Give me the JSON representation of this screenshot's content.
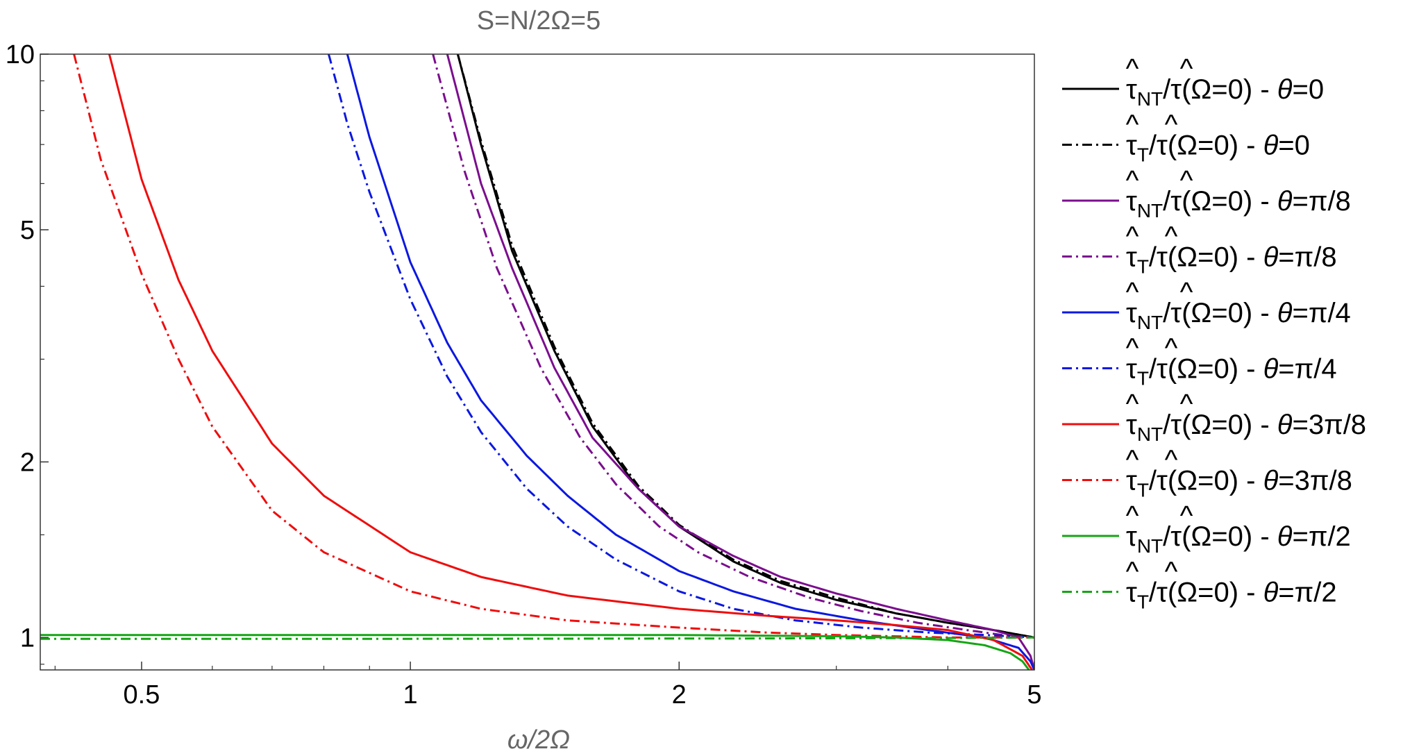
{
  "chart_data": {
    "type": "line",
    "title": "S=N/2Ω=5",
    "xlabel": "ω/2Ω",
    "ylabel": "",
    "xscale": "log",
    "yscale": "log",
    "xlim": [
      0.385,
      5.0
    ],
    "ylim": [
      0.88,
      10
    ],
    "xticks": [
      0.5,
      1,
      2,
      5
    ],
    "xtick_labels": [
      "0.5",
      "1",
      "2",
      "5"
    ],
    "yticks": [
      1,
      2,
      5,
      10
    ],
    "ytick_labels": [
      "1",
      "2",
      "5",
      "10"
    ],
    "grid": false,
    "legend_position": "right",
    "series": [
      {
        "name": "τ̂NT/τ̂(Ω=0) - θ=0",
        "sub": "NT",
        "theta": "0",
        "color": "#000000",
        "dash": "solid",
        "x": [
          1.13,
          1.2,
          1.3,
          1.45,
          1.6,
          1.8,
          2.0,
          2.3,
          2.6,
          3.0,
          3.5,
          4.0,
          4.5,
          5.0
        ],
        "y": [
          10,
          7.0,
          4.6,
          3.1,
          2.3,
          1.8,
          1.55,
          1.35,
          1.24,
          1.16,
          1.1,
          1.06,
          1.03,
          1.0
        ]
      },
      {
        "name": "τ̂T/τ̂(Ω=0) - θ=0",
        "sub": "T",
        "theta": "0",
        "color": "#000000",
        "dash": "dashdot",
        "x": [
          1.13,
          1.2,
          1.3,
          1.45,
          1.6,
          1.8,
          2.0,
          2.3,
          2.6,
          3.0,
          3.5,
          4.0,
          4.5,
          5.0
        ],
        "y": [
          10,
          7.1,
          4.7,
          3.15,
          2.33,
          1.82,
          1.56,
          1.36,
          1.25,
          1.17,
          1.1,
          1.06,
          1.03,
          1.0
        ]
      },
      {
        "name": "τ̂NT/τ̂(Ω=0) - θ=π/8",
        "sub": "NT",
        "theta": "π/8",
        "color": "#7b0d8e",
        "dash": "solid",
        "x": [
          1.1,
          1.2,
          1.3,
          1.45,
          1.6,
          1.8,
          2.0,
          2.3,
          2.6,
          3.0,
          3.5,
          4.0,
          4.5,
          4.8,
          4.95,
          5.0
        ],
        "y": [
          10,
          6.0,
          4.3,
          2.9,
          2.2,
          1.8,
          1.55,
          1.38,
          1.27,
          1.19,
          1.12,
          1.07,
          1.03,
          1.0,
          0.93,
          0.88
        ]
      },
      {
        "name": "τ̂T/τ̂(Ω=0) - θ=π/8",
        "sub": "T",
        "theta": "π/8",
        "color": "#7b0d8e",
        "dash": "dashdot",
        "x": [
          1.06,
          1.15,
          1.25,
          1.4,
          1.55,
          1.7,
          1.9,
          2.1,
          2.4,
          2.8,
          3.2,
          3.7,
          4.2,
          4.6,
          5.0
        ],
        "y": [
          10,
          6.3,
          4.3,
          2.9,
          2.2,
          1.83,
          1.55,
          1.4,
          1.27,
          1.17,
          1.11,
          1.06,
          1.03,
          1.01,
          1.0
        ]
      },
      {
        "name": "τ̂NT/τ̂(Ω=0) - θ=π/4",
        "sub": "NT",
        "theta": "π/4",
        "color": "#0b18e0",
        "dash": "solid",
        "x": [
          0.85,
          0.9,
          1.0,
          1.1,
          1.2,
          1.35,
          1.5,
          1.7,
          2.0,
          2.3,
          2.7,
          3.2,
          3.8,
          4.4,
          4.8,
          4.95,
          5.0
        ],
        "y": [
          10,
          7.2,
          4.4,
          3.2,
          2.55,
          2.05,
          1.75,
          1.5,
          1.3,
          1.2,
          1.12,
          1.07,
          1.03,
          1.0,
          0.96,
          0.91,
          0.88
        ]
      },
      {
        "name": "τ̂T/τ̂(Ω=0) - θ=π/4",
        "sub": "T",
        "theta": "π/4",
        "color": "#0b18e0",
        "dash": "dashdot",
        "x": [
          0.81,
          0.85,
          0.9,
          1.0,
          1.1,
          1.2,
          1.35,
          1.5,
          1.7,
          2.0,
          2.3,
          2.7,
          3.2,
          3.8,
          4.4,
          5.0
        ],
        "y": [
          10,
          7.6,
          5.8,
          3.8,
          2.8,
          2.25,
          1.8,
          1.55,
          1.36,
          1.2,
          1.12,
          1.07,
          1.04,
          1.02,
          1.01,
          1.0
        ]
      },
      {
        "name": "τ̂NT/τ̂(Ω=0) - θ=3π/8",
        "sub": "NT",
        "theta": "3π/8",
        "color": "#ef0d0d",
        "dash": "solid",
        "x": [
          0.46,
          0.5,
          0.55,
          0.6,
          0.7,
          0.8,
          1.0,
          1.2,
          1.5,
          2.0,
          2.5,
          3.0,
          3.5,
          4.0,
          4.5,
          4.85,
          4.97
        ],
        "y": [
          10,
          6.1,
          4.1,
          3.1,
          2.15,
          1.75,
          1.4,
          1.27,
          1.18,
          1.12,
          1.09,
          1.07,
          1.05,
          1.03,
          0.99,
          0.93,
          0.88
        ]
      },
      {
        "name": "τ̂T/τ̂(Ω=0) - θ=3π/8",
        "sub": "T",
        "theta": "3π/8",
        "color": "#ef0d0d",
        "dash": "dashdot",
        "x": [
          0.42,
          0.45,
          0.5,
          0.55,
          0.6,
          0.7,
          0.8,
          1.0,
          1.2,
          1.5,
          2.0,
          2.5,
          3.0,
          4.0,
          5.0
        ],
        "y": [
          10,
          6.6,
          4.2,
          3.0,
          2.3,
          1.65,
          1.4,
          1.2,
          1.12,
          1.07,
          1.04,
          1.02,
          1.01,
          1.0,
          1.0
        ]
      },
      {
        "name": "τ̂NT/τ̂(Ω=0) - θ=π/2",
        "sub": "NT",
        "theta": "π/2",
        "color": "#15a515",
        "dash": "solid",
        "x": [
          0.385,
          1.0,
          2.0,
          3.0,
          3.5,
          4.0,
          4.4,
          4.7,
          4.85,
          4.93
        ],
        "y": [
          1.01,
          1.01,
          1.01,
          1.005,
          1.0,
          0.99,
          0.97,
          0.94,
          0.91,
          0.88
        ]
      },
      {
        "name": "τ̂T/τ̂(Ω=0) - θ=π/2",
        "sub": "T",
        "theta": "π/2",
        "color": "#15a515",
        "dash": "dashdot",
        "x": [
          0.385,
          1.0,
          2.0,
          3.0,
          4.0,
          5.0
        ],
        "y": [
          0.995,
          0.995,
          0.996,
          0.997,
          0.998,
          1.0
        ]
      }
    ]
  }
}
